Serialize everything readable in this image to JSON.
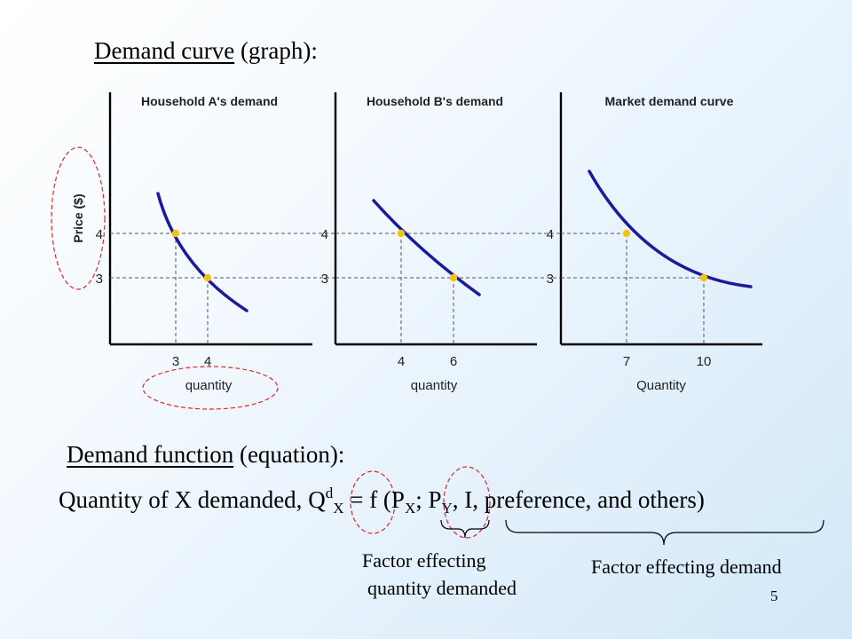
{
  "heading_graph": {
    "title": "Demand curve",
    "suffix": "(graph):"
  },
  "heading_function": {
    "title": "Demand function",
    "suffix": "(equation):"
  },
  "equation": {
    "prefix": "Quantity of X demanded,",
    "q": "Q",
    "q_sup": "d",
    "q_sub": "X",
    "equals": "= f (P",
    "px_sub": "X",
    "semicolon": "; P",
    "py_sub": "Y",
    "rest": ", I, preference, and others)"
  },
  "notes": {
    "quantity_line1": "Factor effecting",
    "quantity_line2": "quantity demanded",
    "demand": "Factor effecting demand"
  },
  "page_number": "5",
  "colors": {
    "curve": "#1a1a9c",
    "point": "#f2c40f",
    "annotation": "#d9262e"
  },
  "chart_data": [
    {
      "type": "line",
      "title": "Household A's demand",
      "xlabel": "quantity",
      "ylabel": "Price ($)",
      "points": [
        {
          "q": 3,
          "p": 4
        },
        {
          "q": 4,
          "p": 3
        }
      ],
      "x_ticks": [
        "3",
        "4"
      ],
      "y_ticks": [
        "4",
        "3"
      ]
    },
    {
      "type": "line",
      "title": "Household B's demand",
      "xlabel": "quantity",
      "ylabel": "",
      "points": [
        {
          "q": 4,
          "p": 4
        },
        {
          "q": 6,
          "p": 3
        }
      ],
      "x_ticks": [
        "4",
        "6"
      ],
      "y_ticks": [
        "4",
        "3"
      ]
    },
    {
      "type": "line",
      "title": "Market demand curve",
      "xlabel": "Quantity",
      "ylabel": "",
      "points": [
        {
          "q": 7,
          "p": 4
        },
        {
          "q": 10,
          "p": 3
        }
      ],
      "x_ticks": [
        "7",
        "10"
      ],
      "y_ticks": [
        "4",
        "3"
      ]
    }
  ]
}
